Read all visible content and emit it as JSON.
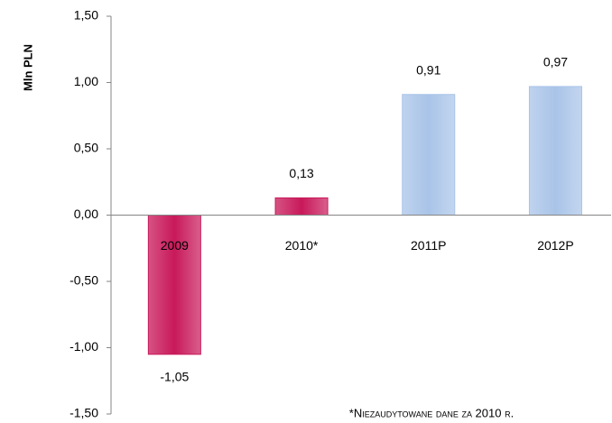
{
  "chart_data": {
    "type": "bar",
    "y_label": "Mln PLN",
    "categories": [
      "2009",
      "2010*",
      "2011P",
      "2012P"
    ],
    "values": [
      -1.05,
      0.13,
      0.91,
      0.97
    ],
    "value_labels": [
      "-1,05",
      "0,13",
      "0,91",
      "0,97"
    ],
    "colors": [
      "#c8195a",
      "#c8195a",
      "#a9c4e8",
      "#a9c4e8"
    ],
    "ylim": [
      -1.5,
      1.5
    ],
    "yticks": [
      {
        "value": -1.5,
        "label": "-1,50"
      },
      {
        "value": -1.0,
        "label": "-1,00"
      },
      {
        "value": -0.5,
        "label": "-0,50"
      },
      {
        "value": 0,
        "label": "0,00"
      },
      {
        "value": 0.5,
        "label": "0,50"
      },
      {
        "value": 1.0,
        "label": "1,00"
      },
      {
        "value": 1.5,
        "label": "1,50"
      }
    ],
    "footnote": "*Niezaudytowane dane za 2010 r."
  }
}
